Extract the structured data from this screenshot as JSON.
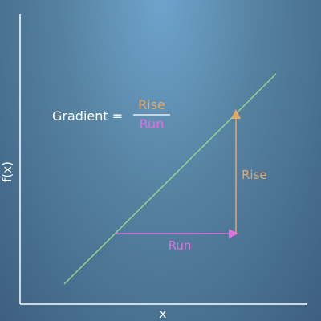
{
  "axes": {
    "x_label": "x",
    "y_label": "f(x)"
  },
  "formula": {
    "lhs": "Gradient =",
    "numerator": "Rise",
    "denominator": "Run"
  },
  "annotations": {
    "rise_label": "Rise",
    "run_label": "Run"
  },
  "colors": {
    "axis": "#ffffff",
    "line": "#8fd38f",
    "rise": "#e0a86a",
    "run": "#e06fe0",
    "text": "#ffffff"
  }
}
